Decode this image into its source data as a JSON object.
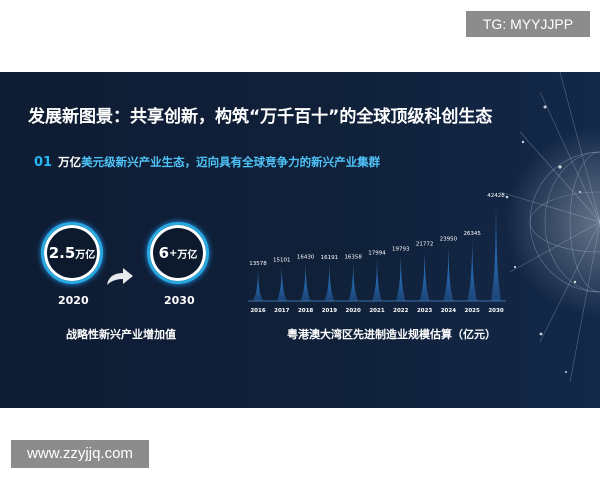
{
  "watermarks": {
    "top": "TG: MYYJJPP",
    "bottom": "www.zzyjjq.com"
  },
  "slide": {
    "title": "发展新图景：共享创新，构筑“万千百十”的全球顶级科创生态",
    "subtitle": {
      "number": "01",
      "highlight": "万亿",
      "rest": "美元级新兴产业生态，迈向具有全球竞争力的新兴产业集群"
    },
    "left": {
      "value_2020": "2.5",
      "unit_2020": "万亿",
      "value_2030": "6",
      "plus": "+",
      "unit_2030": "万亿",
      "year_2020": "2020",
      "year_2030": "2030",
      "caption": "战略性新兴产业增加值"
    },
    "right_caption": "粤港澳大湾区先进制造业规模估算（亿元）"
  },
  "chart_data": {
    "type": "bar",
    "categories": [
      "2016",
      "2017",
      "2018",
      "2019",
      "2020",
      "2021",
      "2022",
      "2023",
      "2024",
      "2025",
      "2030"
    ],
    "values": [
      13578,
      15101,
      16430,
      16191,
      16358,
      17994,
      19793,
      21772,
      23950,
      26345,
      42428
    ],
    "title": "",
    "xlabel": "",
    "ylabel": "",
    "bar_style": "glowing spikes",
    "colors": {
      "bar": "#2f7fd6",
      "bar_top": "#d8ecff"
    }
  },
  "colors": {
    "background": "#10213a",
    "accent": "#29b6f6"
  }
}
